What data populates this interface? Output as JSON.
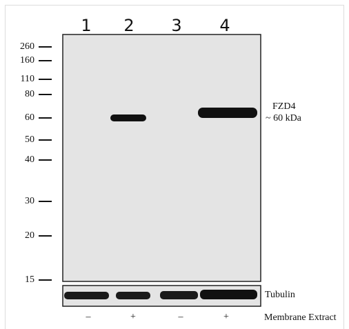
{
  "lanes": [
    "1",
    "2",
    "3",
    "4"
  ],
  "markers": [
    "260",
    "160",
    "110",
    "80",
    "60",
    "50",
    "40",
    "30",
    "20",
    "15"
  ],
  "band_label": {
    "name": "FZD4",
    "size": "~ 60  kDa"
  },
  "loading_control": "Tubulin",
  "treatment": {
    "values": [
      "–",
      "+",
      "–",
      "+"
    ],
    "label": "Membrane Extract"
  }
}
